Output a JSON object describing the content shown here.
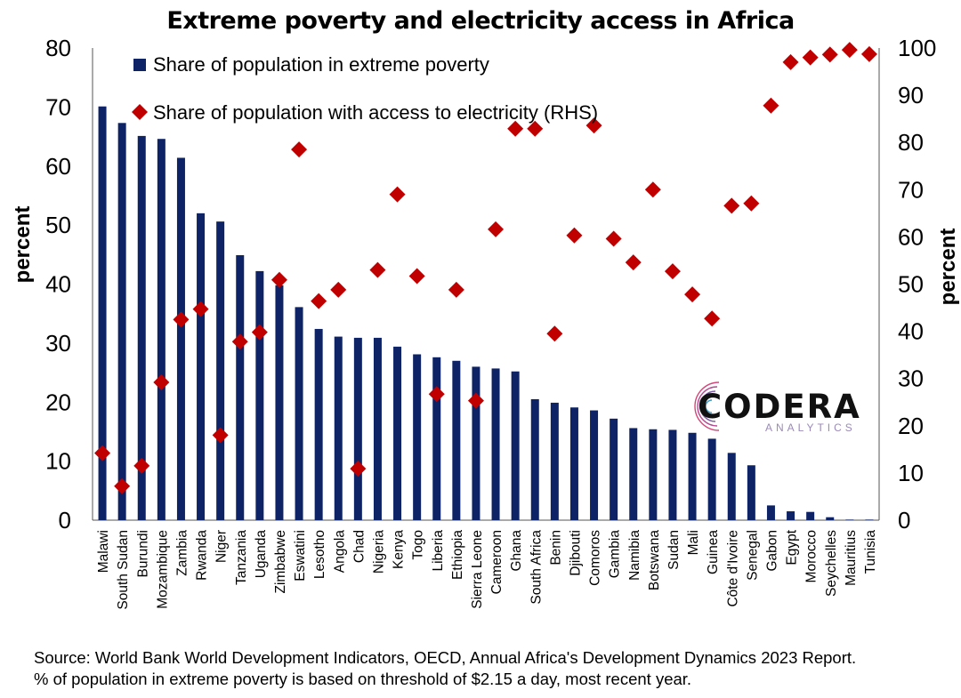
{
  "chart_data": {
    "type": "bar",
    "title": "Extreme poverty and electricity access in Africa",
    "ylabel": "percent",
    "y2label": "percent",
    "ylim": [
      0,
      80
    ],
    "y2lim": [
      0,
      100
    ],
    "yticks": [
      0,
      10,
      20,
      30,
      40,
      50,
      60,
      70,
      80
    ],
    "y2ticks": [
      0,
      10,
      20,
      30,
      40,
      50,
      60,
      70,
      80,
      90,
      100
    ],
    "legend_position": "top-left",
    "categories": [
      "Malawi",
      "South Sudan",
      "Burundi",
      "Mozambique",
      "Zambia",
      "Rwanda",
      "Niger",
      "Tanzania",
      "Uganda",
      "Zimbabwe",
      "Eswatini",
      "Lesotho",
      "Angola",
      "Chad",
      "Nigeria",
      "Kenya",
      "Togo",
      "Liberia",
      "Ethiopia",
      "Sierra Leone",
      "Cameroon",
      "Ghana",
      "South Africa",
      "Benin",
      "Djibouti",
      "Comoros",
      "Gambia",
      "Namibia",
      "Botswana",
      "Sudan",
      "Mali",
      "Guinea",
      "Côte d'Ivoire",
      "Senegal",
      "Gabon",
      "Egypt",
      "Morocco",
      "Seychelles",
      "Mauritius",
      "Tunisia"
    ],
    "series": [
      {
        "name": "Share of population in extreme poverty",
        "type": "bar",
        "axis": "left",
        "color": "#0d2366",
        "values": [
          70.1,
          67.3,
          65.1,
          64.6,
          61.4,
          52.0,
          50.6,
          44.9,
          42.2,
          39.8,
          36.1,
          32.4,
          31.1,
          30.9,
          30.9,
          29.4,
          28.1,
          27.6,
          27.0,
          26.0,
          25.7,
          25.2,
          20.5,
          19.9,
          19.1,
          18.6,
          17.2,
          15.6,
          15.4,
          15.3,
          14.8,
          13.8,
          11.4,
          9.3,
          2.5,
          1.5,
          1.4,
          0.5,
          0.1,
          0.1
        ]
      },
      {
        "name": "Share of population with access to electricity (RHS)",
        "type": "scatter",
        "axis": "right",
        "color": "#c00000",
        "values": [
          14.2,
          7.2,
          11.5,
          29.2,
          42.5,
          44.7,
          18.0,
          37.8,
          39.8,
          50.9,
          78.5,
          46.4,
          48.8,
          10.9,
          53.0,
          69.0,
          51.7,
          26.7,
          48.8,
          25.3,
          61.6,
          82.9,
          82.9,
          39.5,
          60.3,
          83.6,
          59.6,
          54.6,
          70.0,
          52.7,
          47.8,
          42.7,
          66.6,
          67.1,
          87.8,
          97.0,
          98.0,
          98.6,
          99.6,
          98.7
        ]
      }
    ]
  },
  "source_line1": "Source: World Bank World Development Indicators, OECD, Annual Africa's Development Dynamics 2023 Report.",
  "source_line2": "% of population in extreme poverty is based on threshold of $2.15 a day, most recent year.",
  "logo": {
    "name": "CODERA",
    "tagline": "ANALYTICS"
  }
}
